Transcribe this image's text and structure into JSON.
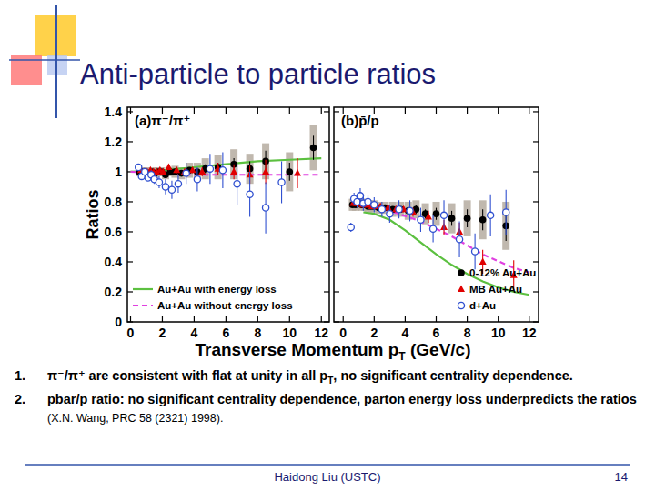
{
  "slide": {
    "title": "Anti-particle to particle ratios",
    "x_label": "Transverse Momentum pT (GeV/c)",
    "notes": [
      {
        "number": "1.",
        "text": "π⁻/π⁺ are consistent with flat at unity in all pT, no significant centrality dependence."
      },
      {
        "number": "2.",
        "text": "pbar/p ratio: no significant centrality dependence, parton energy loss underpredicts the ratios",
        "ref": "(X.N. Wang, PRC 58 (2321) 1998)."
      }
    ],
    "footer": "Haidong Liu (USTC)",
    "page": "14"
  },
  "chart_data": [
    {
      "type": "scatter",
      "title": "(a)π⁻/π⁺",
      "y_label": "Ratios",
      "xlim": [
        -0.2,
        12.5
      ],
      "xticks": [
        0,
        2,
        4,
        6,
        8,
        10,
        12
      ],
      "ylim": [
        0,
        1.43
      ],
      "yticks": [
        0,
        0.2,
        0.4,
        0.6,
        0.8,
        1,
        1.2,
        1.4
      ],
      "legend": "lower left",
      "series": [
        {
          "type": "scatter",
          "marker": "circle",
          "color": "#000000",
          "x": [
            0.55,
            0.75,
            0.95,
            1.15,
            1.35,
            1.55,
            1.75,
            1.95,
            2.2,
            2.5,
            2.8,
            3.2,
            3.7,
            4.2,
            4.7,
            5.5,
            6.5,
            7.5,
            8.5,
            10,
            11.5
          ],
          "values": [
            1.0,
            1.0,
            1.0,
            0.99,
            1.0,
            0.99,
            1.0,
            1.0,
            0.98,
            1.0,
            1.0,
            0.99,
            1.01,
            1.0,
            1.02,
            1.03,
            1.05,
            1.02,
            1.07,
            1.0,
            1.16
          ],
          "errors": [
            0.01,
            0.01,
            0.01,
            0.01,
            0.01,
            0.01,
            0.01,
            0.01,
            0.01,
            0.02,
            0.02,
            0.02,
            0.02,
            0.02,
            0.03,
            0.03,
            0.04,
            0.05,
            0.07,
            0.06,
            0.08
          ],
          "sys_errors": [
            0.03,
            0.03,
            0.03,
            0.03,
            0.03,
            0.03,
            0.03,
            0.03,
            0.03,
            0.03,
            0.04,
            0.04,
            0.05,
            0.06,
            0.07,
            0.08,
            0.1,
            0.1,
            0.12,
            0.13,
            0.15
          ]
        },
        {
          "type": "scatter",
          "marker": "triangle",
          "color": "#e00000",
          "x": [
            0.65,
            0.85,
            1.05,
            1.25,
            1.45,
            1.65,
            1.85,
            2.05,
            2.4,
            2.9,
            3.4,
            3.9,
            4.5,
            5.5,
            6.5,
            7.5,
            8.5,
            10.5
          ],
          "values": [
            1.01,
            1.0,
            1.0,
            1.01,
            1.0,
            1.0,
            1.01,
            1.0,
            1.03,
            1.01,
            1.0,
            1.01,
            1.0,
            1.02,
            1.0,
            0.98,
            1.0,
            0.99
          ],
          "errors": [
            0.01,
            0.01,
            0.01,
            0.01,
            0.01,
            0.01,
            0.01,
            0.01,
            0.02,
            0.02,
            0.02,
            0.02,
            0.03,
            0.04,
            0.05,
            0.06,
            0.08,
            0.1
          ]
        },
        {
          "type": "scatter",
          "marker": "open_circle",
          "color": "#3050d0",
          "x": [
            0.5,
            0.7,
            0.9,
            1.1,
            1.3,
            1.5,
            1.8,
            2.2,
            2.6,
            3.0,
            3.5,
            4.2,
            5.0,
            5.8,
            6.7,
            7.5,
            8.5,
            9.5
          ],
          "values": [
            1.03,
            0.97,
            1.0,
            0.96,
            0.98,
            0.95,
            0.93,
            0.9,
            0.88,
            0.92,
            0.99,
            0.95,
            1.02,
            1.01,
            0.92,
            0.85,
            0.76,
            0.93
          ],
          "errors": [
            0.02,
            0.02,
            0.02,
            0.02,
            0.03,
            0.03,
            0.04,
            0.05,
            0.06,
            0.06,
            0.07,
            0.08,
            0.1,
            0.12,
            0.14,
            0.15,
            0.17,
            0.14
          ]
        },
        {
          "type": "line",
          "name": "Au+Au with energy loss",
          "line_style": "solid",
          "color": "#5cc040",
          "x": [
            0,
            2,
            4,
            6,
            8,
            10,
            12
          ],
          "values": [
            1.0,
            1.01,
            1.03,
            1.05,
            1.07,
            1.08,
            1.09
          ]
        },
        {
          "type": "line",
          "name": "Au+Au without energy loss",
          "line_style": "dashed",
          "color": "#e040e0",
          "x": [
            0,
            2,
            4,
            6,
            8,
            10,
            12
          ],
          "values": [
            1.0,
            0.99,
            0.98,
            0.98,
            0.98,
            0.98,
            0.98
          ]
        }
      ]
    },
    {
      "type": "scatter",
      "title": "(b)p̄/p",
      "xlim": [
        -0.6,
        12.6
      ],
      "xticks": [
        0,
        2,
        4,
        6,
        8,
        10,
        12
      ],
      "ylim": [
        0,
        1.43
      ],
      "yticks": [
        0,
        0.2,
        0.4,
        0.6,
        0.8,
        1,
        1.2,
        1.4
      ],
      "tick_labels": "x",
      "legend": "lower right",
      "series": [
        {
          "type": "scatter",
          "name": "0-12% Au+Au",
          "marker": "circle",
          "color": "#000000",
          "x": [
            0.6,
            0.8,
            1.0,
            1.2,
            1.4,
            1.6,
            1.8,
            2.0,
            2.3,
            2.7,
            3.2,
            3.7,
            4.2,
            4.7,
            5.3,
            6.0,
            7.0,
            8.0,
            9.0,
            10.5
          ],
          "values": [
            0.78,
            0.78,
            0.79,
            0.78,
            0.78,
            0.77,
            0.77,
            0.77,
            0.76,
            0.76,
            0.75,
            0.75,
            0.74,
            0.75,
            0.72,
            0.72,
            0.69,
            0.69,
            0.68,
            0.64
          ],
          "errors": [
            0.01,
            0.01,
            0.01,
            0.01,
            0.01,
            0.01,
            0.01,
            0.01,
            0.01,
            0.01,
            0.02,
            0.02,
            0.02,
            0.03,
            0.03,
            0.04,
            0.05,
            0.06,
            0.07,
            0.1
          ],
          "sys_errors": [
            0.04,
            0.04,
            0.04,
            0.04,
            0.04,
            0.04,
            0.04,
            0.04,
            0.04,
            0.04,
            0.05,
            0.05,
            0.06,
            0.06,
            0.07,
            0.08,
            0.1,
            0.12,
            0.13,
            0.16
          ]
        },
        {
          "type": "scatter",
          "name": "MB Au+Au",
          "marker": "triangle",
          "color": "#e00000",
          "x": [
            0.65,
            0.85,
            1.05,
            1.25,
            1.45,
            1.65,
            1.85,
            2.05,
            2.4,
            2.9,
            3.4,
            3.9,
            4.5,
            5.5,
            6.5,
            7.5,
            9.0,
            11.0
          ],
          "values": [
            0.79,
            0.79,
            0.79,
            0.78,
            0.78,
            0.78,
            0.77,
            0.77,
            0.77,
            0.76,
            0.75,
            0.75,
            0.73,
            0.7,
            0.63,
            0.6,
            0.4,
            0.31
          ],
          "errors": [
            0.01,
            0.01,
            0.01,
            0.01,
            0.01,
            0.01,
            0.01,
            0.01,
            0.01,
            0.02,
            0.02,
            0.02,
            0.03,
            0.04,
            0.05,
            0.06,
            0.08,
            0.1
          ]
        },
        {
          "type": "scatter",
          "name": "d+Au",
          "marker": "open_circle",
          "color": "#3050d0",
          "x": [
            0.5,
            0.7,
            0.9,
            1.1,
            1.3,
            1.6,
            2.0,
            2.5,
            3.0,
            3.6,
            4.3,
            5.0,
            5.8,
            6.5,
            7.5,
            8.5,
            9.5,
            10.5
          ],
          "values": [
            0.63,
            0.82,
            0.8,
            0.84,
            0.79,
            0.8,
            0.78,
            0.75,
            0.72,
            0.75,
            0.74,
            0.68,
            0.62,
            0.71,
            0.55,
            0.47,
            0.71,
            0.73
          ],
          "errors": [
            0.03,
            0.04,
            0.04,
            0.05,
            0.05,
            0.05,
            0.05,
            0.05,
            0.06,
            0.06,
            0.07,
            0.08,
            0.09,
            0.1,
            0.12,
            0.12,
            0.14,
            0.15
          ]
        },
        {
          "type": "line",
          "line_style": "solid",
          "color": "#5cc040",
          "x": [
            1.3,
            2,
            3,
            4,
            5,
            6,
            7,
            8,
            9,
            10,
            11,
            12
          ],
          "values": [
            0.73,
            0.72,
            0.68,
            0.61,
            0.53,
            0.45,
            0.38,
            0.32,
            0.27,
            0.23,
            0.2,
            0.18
          ]
        },
        {
          "type": "line",
          "line_style": "dashed",
          "color": "#e040e0",
          "x": [
            1.5,
            3,
            5,
            7,
            9,
            11,
            12
          ],
          "values": [
            0.77,
            0.74,
            0.67,
            0.57,
            0.45,
            0.36,
            0.33
          ]
        }
      ]
    }
  ]
}
